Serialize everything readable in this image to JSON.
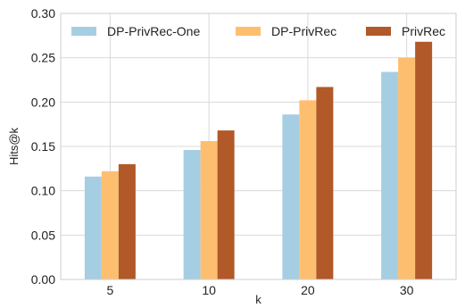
{
  "chart_data": {
    "type": "bar",
    "xlabel": "k",
    "ylabel": "Hits@k",
    "categories": [
      "5",
      "10",
      "20",
      "30"
    ],
    "ylim": [
      0,
      0.3
    ],
    "yticks": [
      "0.00",
      "0.05",
      "0.10",
      "0.15",
      "0.20",
      "0.25",
      "0.30"
    ],
    "grid": true,
    "legend_position": "top",
    "series": [
      {
        "name": "DP-PrivRec-One",
        "color": "#a6cee3",
        "values": [
          0.116,
          0.146,
          0.186,
          0.234
        ]
      },
      {
        "name": "DP-PrivRec",
        "color": "#fdbf6f",
        "values": [
          0.122,
          0.156,
          0.202,
          0.25
        ]
      },
      {
        "name": "PrivRec",
        "color": "#b15928",
        "values": [
          0.13,
          0.168,
          0.217,
          0.268
        ]
      }
    ]
  }
}
